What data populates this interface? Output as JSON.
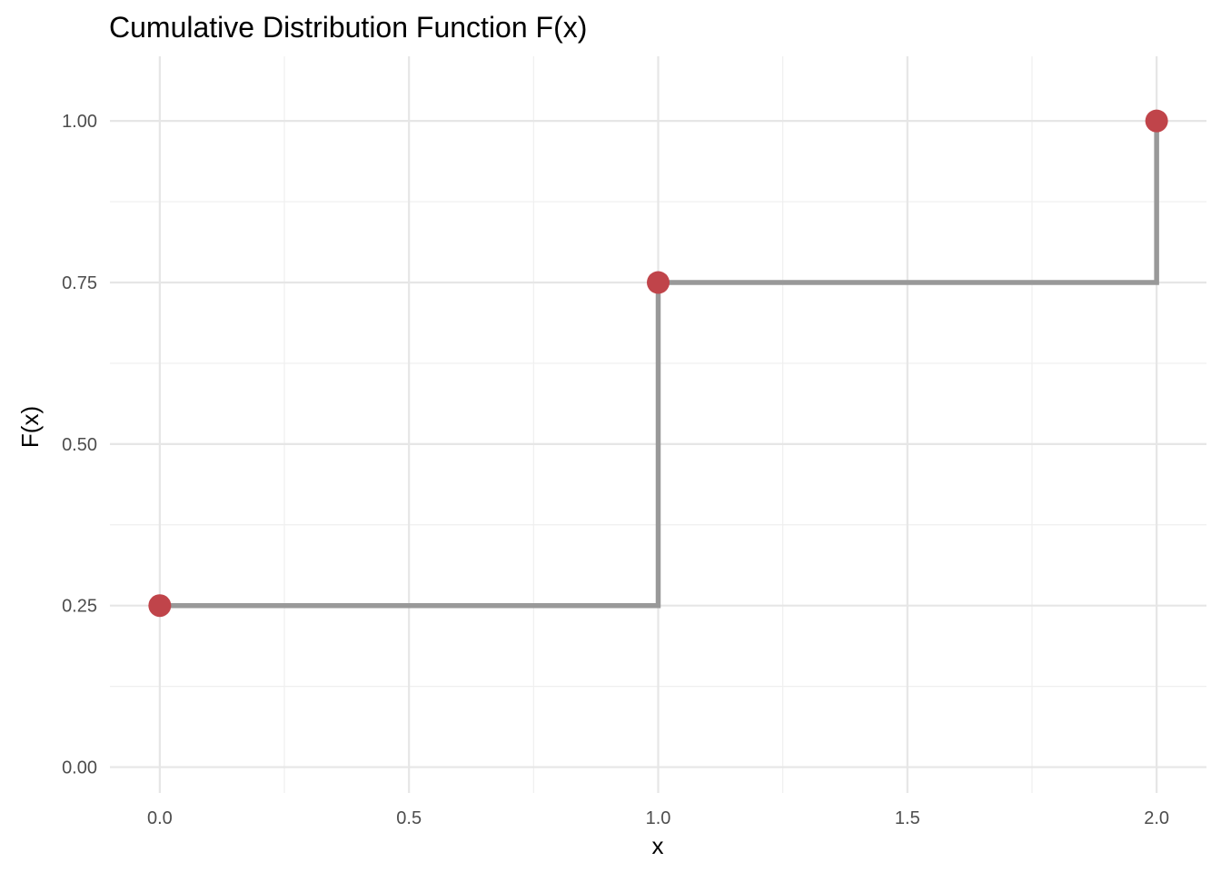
{
  "chart_data": {
    "type": "line",
    "subtype": "step",
    "title": "Cumulative Distribution Function F(x)",
    "xlabel": "x",
    "ylabel": "F(x)",
    "xlim": [
      -0.1,
      2.1
    ],
    "ylim": [
      -0.04,
      1.1
    ],
    "x_ticks": [
      0.0,
      0.5,
      1.0,
      1.5,
      2.0
    ],
    "x_tick_labels": [
      "0.0",
      "0.5",
      "1.0",
      "1.5",
      "2.0"
    ],
    "y_ticks": [
      0.0,
      0.25,
      0.5,
      0.75,
      1.0
    ],
    "y_tick_labels": [
      "0.00",
      "0.25",
      "0.50",
      "0.75",
      "1.00"
    ],
    "x_minor_ticks": [
      0.25,
      0.75,
      1.25,
      1.75
    ],
    "y_minor_ticks": [
      0.125,
      0.375,
      0.625,
      0.875
    ],
    "grid": true,
    "legend": "none",
    "series": [
      {
        "x": [
          0,
          1,
          2
        ],
        "y": [
          0.25,
          0.75,
          1.0
        ],
        "line_color": "#999999",
        "point_color": "#c0444a"
      }
    ]
  }
}
